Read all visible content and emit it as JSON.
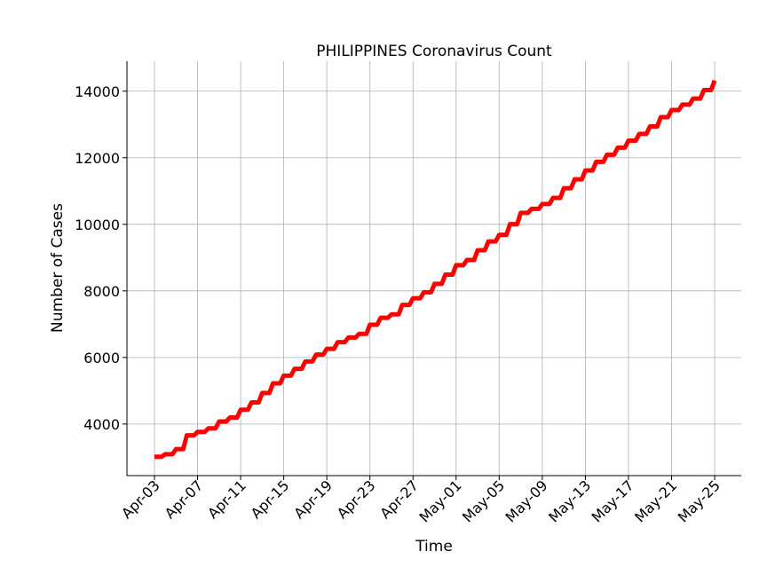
{
  "chart_data": {
    "type": "line",
    "title": "PHILIPPINES Coronavirus Count",
    "xlabel": "Time",
    "ylabel": "Number of Cases",
    "line_color": "#ff0000",
    "grid": true,
    "ylim": [
      2450,
      14900
    ],
    "yticks": [
      4000,
      6000,
      8000,
      10000,
      12000,
      14000
    ],
    "xticks": [
      "Apr-03",
      "Apr-07",
      "Apr-11",
      "Apr-15",
      "Apr-19",
      "Apr-23",
      "Apr-27",
      "May-01",
      "May-05",
      "May-09",
      "May-13",
      "May-17",
      "May-21",
      "May-25"
    ],
    "series": [
      {
        "x": [
          "Apr-03",
          "Apr-04",
          "Apr-05",
          "Apr-06",
          "Apr-07",
          "Apr-08",
          "Apr-09",
          "Apr-10",
          "Apr-11",
          "Apr-12",
          "Apr-13",
          "Apr-14",
          "Apr-15",
          "Apr-16",
          "Apr-17",
          "Apr-18",
          "Apr-19",
          "Apr-20",
          "Apr-21",
          "Apr-22",
          "Apr-23",
          "Apr-24",
          "Apr-25",
          "Apr-26",
          "Apr-27",
          "Apr-28",
          "Apr-29",
          "Apr-30",
          "May-01",
          "May-02",
          "May-03",
          "May-04",
          "May-05",
          "May-06",
          "May-07",
          "May-08",
          "May-09",
          "May-10",
          "May-11",
          "May-12",
          "May-13",
          "May-14",
          "May-15",
          "May-16",
          "May-17",
          "May-18",
          "May-19",
          "May-20",
          "May-21",
          "May-22",
          "May-23",
          "May-24",
          "May-25"
        ],
        "values": [
          3018,
          3094,
          3246,
          3660,
          3764,
          3870,
          4076,
          4195,
          4428,
          4648,
          4932,
          5223,
          5453,
          5660,
          5878,
          6087,
          6259,
          6459,
          6599,
          6710,
          6981,
          7192,
          7294,
          7579,
          7777,
          7958,
          8212,
          8488,
          8772,
          8928,
          9223,
          9485,
          9684,
          10004,
          10343,
          10463,
          10610,
          10794,
          11086,
          11350,
          11618,
          11876,
          12091,
          12305,
          12513,
          12718,
          12942,
          13221,
          13434,
          13597,
          13777,
          14035,
          14319
        ]
      }
    ]
  }
}
